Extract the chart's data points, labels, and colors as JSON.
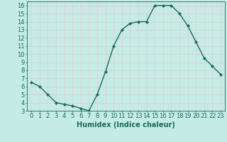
{
  "x": [
    0,
    1,
    2,
    3,
    4,
    5,
    6,
    7,
    8,
    9,
    10,
    11,
    12,
    13,
    14,
    15,
    16,
    17,
    18,
    19,
    20,
    21,
    22,
    23
  ],
  "y": [
    6.5,
    6.0,
    5.0,
    4.0,
    3.8,
    3.6,
    3.3,
    3.0,
    5.0,
    7.8,
    11.0,
    13.0,
    13.8,
    14.0,
    14.0,
    16.0,
    16.0,
    16.0,
    15.0,
    13.5,
    11.5,
    9.5,
    8.5,
    7.5
  ],
  "line_color": "#1a6b5a",
  "marker": "D",
  "marker_size": 2,
  "bg_color": "#c5ebe6",
  "grid_color": "#e8c8c8",
  "xlabel": "Humidex (Indice chaleur)",
  "xlim": [
    -0.5,
    23.5
  ],
  "ylim": [
    3,
    16.5
  ],
  "yticks": [
    3,
    4,
    5,
    6,
    7,
    8,
    9,
    10,
    11,
    12,
    13,
    14,
    15,
    16
  ],
  "xtick_labels": [
    "0",
    "1",
    "2",
    "3",
    "4",
    "5",
    "6",
    "7",
    "8",
    "9",
    "10",
    "11",
    "12",
    "13",
    "14",
    "15",
    "16",
    "17",
    "18",
    "19",
    "20",
    "21",
    "22",
    "23"
  ],
  "tick_color": "#1a6b5a",
  "label_fontsize": 6,
  "xlabel_fontsize": 7
}
